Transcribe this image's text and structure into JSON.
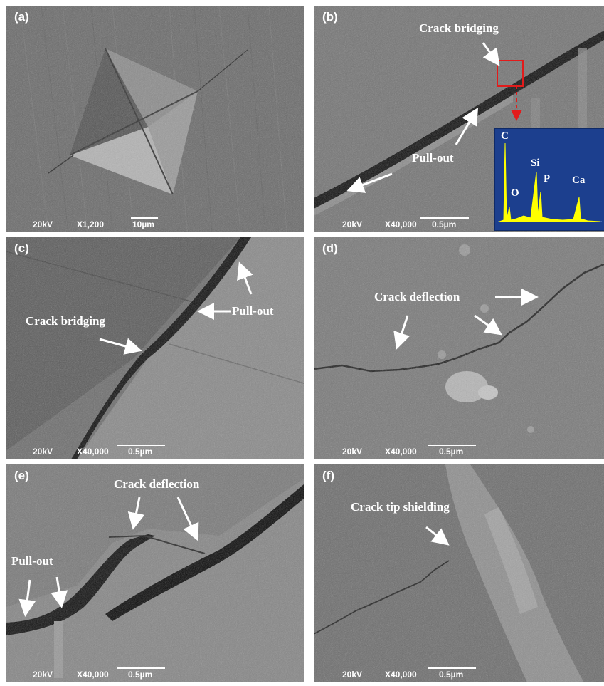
{
  "panels": {
    "a": {
      "label": "(a)",
      "scale": {
        "kv": "20kV",
        "mag": "X1,200",
        "length": "10µm"
      }
    },
    "b": {
      "label": "(b)",
      "scale": {
        "kv": "20kV",
        "mag": "X40,000",
        "length": "0.5µm"
      },
      "annotations": {
        "crack_bridging": "Crack bridging",
        "pull_out": "Pull-out"
      },
      "eds_inset": {
        "peaks": [
          "C",
          "O",
          "Si",
          "P",
          "Ca"
        ],
        "colors": {
          "background": "#1c3f8e",
          "spectrum": "#ffff00",
          "highlight_box": "#e21b1b"
        }
      }
    },
    "c": {
      "label": "(c)",
      "scale": {
        "kv": "20kV",
        "mag": "X40,000",
        "length": "0.5µm"
      },
      "annotations": {
        "crack_bridging": "Crack bridging",
        "pull_out": "Pull-out"
      }
    },
    "d": {
      "label": "(d)",
      "scale": {
        "kv": "20kV",
        "mag": "X40,000",
        "length": "0.5µm"
      },
      "annotations": {
        "crack_deflection": "Crack deflection"
      }
    },
    "e": {
      "label": "(e)",
      "scale": {
        "kv": "20kV",
        "mag": "X40,000",
        "length": "0.5µm"
      },
      "annotations": {
        "crack_deflection": "Crack deflection",
        "pull_out": "Pull-out"
      }
    },
    "f": {
      "label": "(f)",
      "scale": {
        "kv": "20kV",
        "mag": "X40,000",
        "length": "0.5µm"
      },
      "annotations": {
        "crack_tip_shielding": "Crack tip shielding"
      }
    }
  }
}
